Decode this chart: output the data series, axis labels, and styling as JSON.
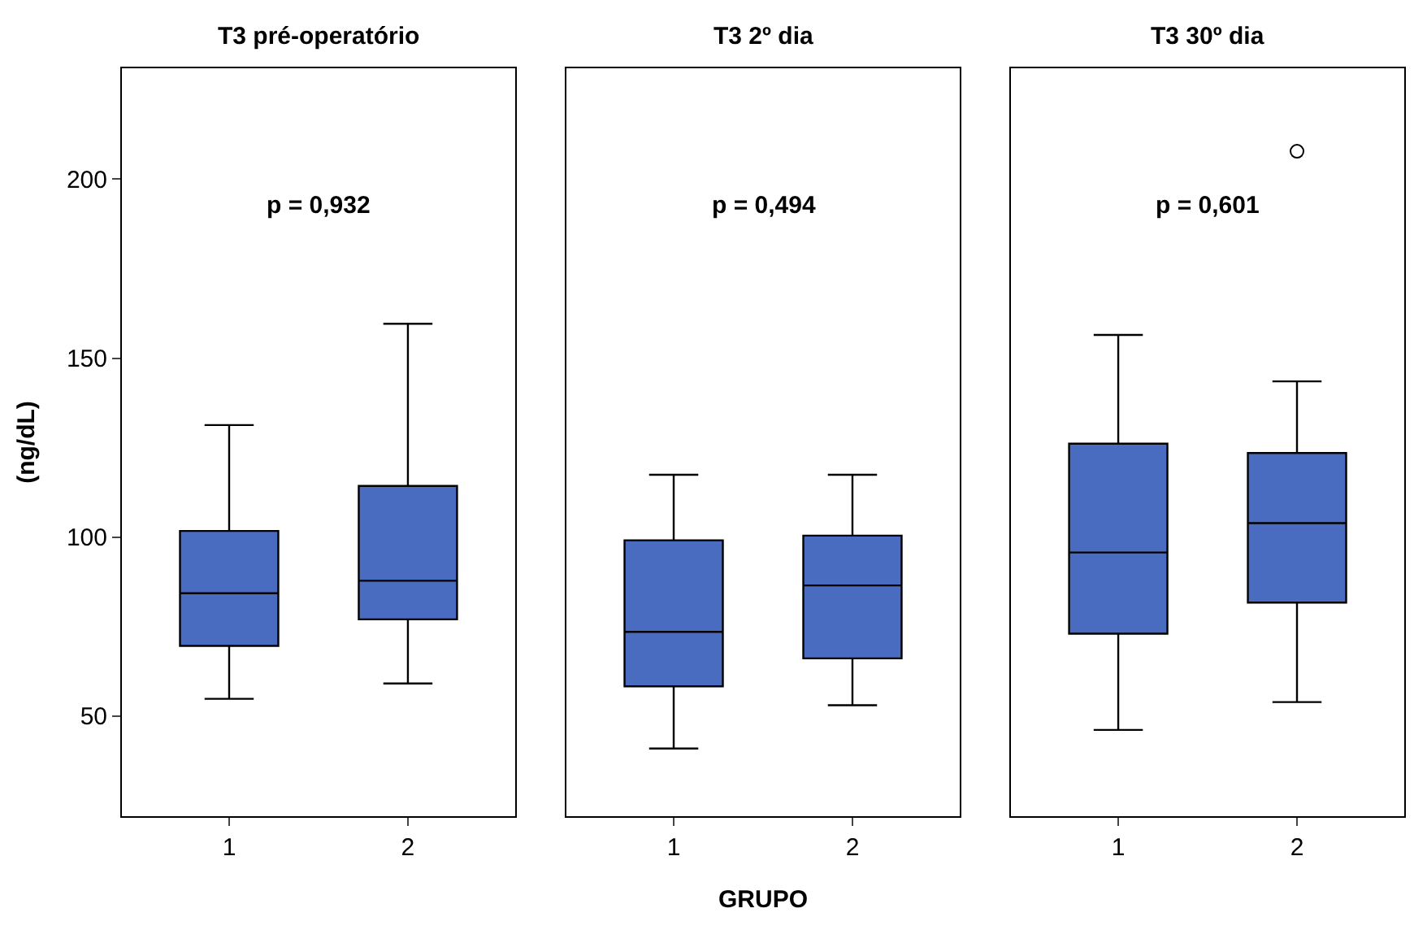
{
  "chart_data": [
    {
      "type": "box",
      "title": "T3 pré-operatório",
      "ylabel": "(ng/dL)",
      "categories": [
        "1",
        "2"
      ],
      "color": "#4a6cc0",
      "ylim": [
        22,
        231
      ],
      "yticks": [
        50,
        100,
        150,
        200
      ],
      "annotations": [
        "p = 0,932"
      ],
      "boxes": [
        {
          "low": 54.8,
          "q1": 69.6,
          "median": 84.3,
          "q3": 101.7,
          "high": 131.3
        },
        {
          "low": 59.1,
          "q1": 77,
          "median": 87.8,
          "q3": 114.3,
          "high": 159.6
        }
      ]
    },
    {
      "type": "box",
      "title": "T3 2º dia",
      "xlabel": "GRUPO",
      "categories": [
        "1",
        "2"
      ],
      "color": "#4a6cc0",
      "ylim": [
        22,
        231
      ],
      "yticks": [
        50,
        100,
        150,
        200
      ],
      "tick_labels": "x",
      "annotations": [
        "p = 0,494"
      ],
      "boxes": [
        {
          "low": 40.9,
          "q1": 58.3,
          "median": 73.5,
          "q3": 99.1,
          "high": 117.4
        },
        {
          "low": 53,
          "q1": 66.1,
          "median": 86.5,
          "q3": 100.4,
          "high": 117.4
        }
      ]
    },
    {
      "type": "box",
      "title": "T3 30º dia",
      "categories": [
        "1",
        "2"
      ],
      "color": "#4a6cc0",
      "ylim": [
        22,
        231
      ],
      "yticks": [
        50,
        100,
        150,
        200
      ],
      "tick_labels": "x",
      "annotations": [
        "p = 0,601"
      ],
      "boxes": [
        {
          "low": 46.1,
          "q1": 73,
          "median": 95.7,
          "q3": 126.1,
          "high": 156.5
        },
        {
          "low": 53.9,
          "q1": 81.7,
          "median": 103.9,
          "q3": 123.5,
          "high": 143.5,
          "outliers": [
            207.8
          ]
        }
      ]
    }
  ]
}
